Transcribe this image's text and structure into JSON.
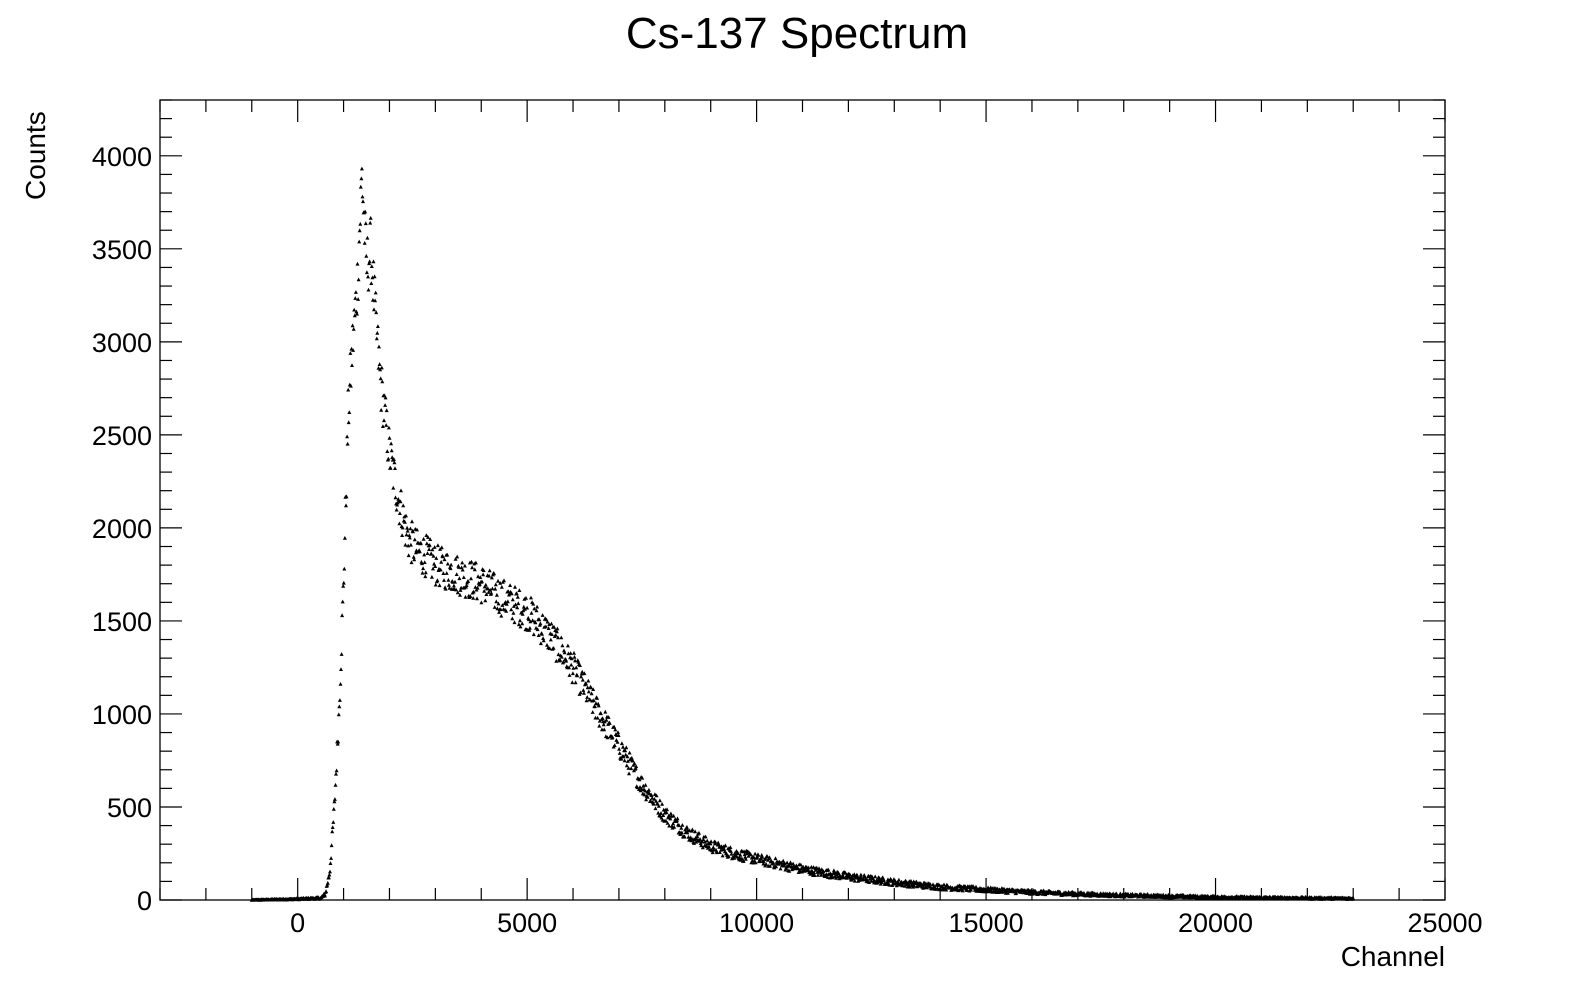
{
  "chart_data": {
    "type": "scatter",
    "title": "Cs-137 Spectrum",
    "xlabel": "Channel",
    "ylabel": "Counts",
    "xlim": [
      -3000,
      25000
    ],
    "ylim": [
      0,
      4300
    ],
    "xticks": [
      0,
      5000,
      10000,
      15000,
      20000,
      25000
    ],
    "xtick_labels": [
      "0",
      "5000",
      "10000",
      "15000",
      "20000",
      "25000"
    ],
    "yticks": [
      0,
      500,
      1000,
      1500,
      2000,
      2500,
      3000,
      3500,
      4000
    ],
    "ytick_labels": [
      "0",
      "500",
      "1000",
      "1500",
      "2000",
      "2500",
      "3000",
      "3500",
      "4000"
    ],
    "x_range": [
      -1000,
      23000
    ],
    "marker_color": "#000000",
    "grid": false,
    "series": [
      {
        "x": [
          -1000,
          0,
          500,
          600,
          700,
          800,
          900,
          1000,
          1100,
          1200,
          1300,
          1400,
          1500,
          1600,
          1700,
          1800,
          1900,
          2000,
          2200,
          2400,
          2600,
          2800,
          3000,
          3500,
          4000,
          4500,
          5000,
          5500,
          6000,
          6500,
          7000,
          7500,
          8000,
          8500,
          9000,
          9500,
          10000,
          11000,
          12000,
          13000,
          14000,
          15000,
          16000,
          17000,
          18000,
          19000,
          20000,
          21000,
          22000,
          23000
        ],
        "y": [
          0,
          5,
          10,
          30,
          150,
          500,
          1000,
          1700,
          2600,
          3000,
          3300,
          3900,
          3400,
          3500,
          3100,
          2800,
          2600,
          2400,
          2150,
          1950,
          1880,
          1850,
          1800,
          1750,
          1700,
          1620,
          1550,
          1420,
          1250,
          1030,
          830,
          620,
          460,
          360,
          290,
          250,
          220,
          165,
          125,
          95,
          70,
          55,
          42,
          32,
          25,
          20,
          15,
          12,
          10,
          8
        ]
      }
    ]
  }
}
